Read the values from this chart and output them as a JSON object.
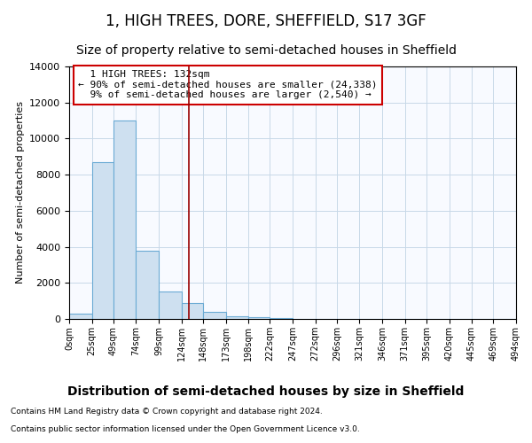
{
  "title": "1, HIGH TREES, DORE, SHEFFIELD, S17 3GF",
  "subtitle": "Size of property relative to semi-detached houses in Sheffield",
  "xlabel": "Distribution of semi-detached houses by size in Sheffield",
  "ylabel": "Number of semi-detached properties",
  "property_size": 132,
  "property_label": "1 HIGH TREES: 132sqm",
  "pct_smaller": 90,
  "count_smaller": "24,338",
  "pct_larger": 9,
  "count_larger": "2,540",
  "bin_edges": [
    0,
    25,
    49,
    74,
    99,
    124,
    148,
    173,
    198,
    222,
    247,
    272,
    296,
    321,
    346,
    371,
    395,
    420,
    445,
    469,
    494
  ],
  "bin_labels": [
    "0sqm",
    "25sqm",
    "49sqm",
    "74sqm",
    "99sqm",
    "124sqm",
    "148sqm",
    "173sqm",
    "198sqm",
    "222sqm",
    "247sqm",
    "272sqm",
    "296sqm",
    "321sqm",
    "346sqm",
    "371sqm",
    "395sqm",
    "420sqm",
    "445sqm",
    "469sqm",
    "494sqm"
  ],
  "counts": [
    300,
    8700,
    11000,
    3800,
    1500,
    900,
    400,
    150,
    100,
    50,
    20,
    10,
    5,
    3,
    2,
    2,
    1,
    1,
    1,
    1
  ],
  "bar_facecolor": "#cee0f0",
  "bar_edgecolor": "#6aaad4",
  "line_color": "#990000",
  "grid_color": "#c8d8e8",
  "bg_color": "#f8faff",
  "annotation_box_edgecolor": "#cc0000",
  "ylim": [
    0,
    14000
  ],
  "yticks": [
    0,
    2000,
    4000,
    6000,
    8000,
    10000,
    12000,
    14000
  ],
  "title_fontsize": 12,
  "subtitle_fontsize": 10,
  "xlabel_fontsize": 10,
  "ylabel_fontsize": 8,
  "tick_fontsize": 8,
  "annotation_fontsize": 8,
  "footer_line1": "Contains HM Land Registry data © Crown copyright and database right 2024.",
  "footer_line2": "Contains public sector information licensed under the Open Government Licence v3.0."
}
